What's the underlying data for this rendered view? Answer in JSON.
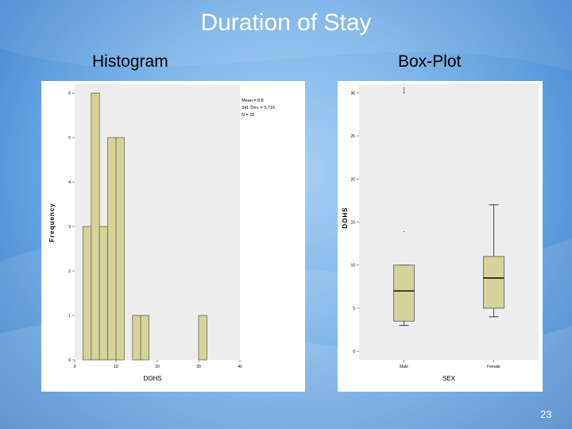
{
  "slide": {
    "title": "Duration of Stay",
    "left_heading": "Histogram",
    "right_heading": "Box-Plot",
    "page_number": "23"
  },
  "colors": {
    "bar_fill": "#d6d29b",
    "bar_stroke": "#6e6a3a",
    "plot_bg": "#ededed",
    "panel_bg": "#ffffff"
  },
  "chart_data": [
    {
      "type": "bar",
      "subtype": "histogram",
      "xlabel": "DOHS",
      "ylabel": "Frequency",
      "xlim": [
        0,
        40
      ],
      "ylim": [
        0,
        6.2
      ],
      "x_ticks": [
        "0",
        "10",
        "20",
        "30",
        "40"
      ],
      "y_ticks": [
        "0",
        "1",
        "2",
        "3",
        "4",
        "5",
        "6"
      ],
      "bin_width": 2,
      "bins": [
        {
          "start": 2,
          "end": 4,
          "count": 3
        },
        {
          "start": 4,
          "end": 6,
          "count": 6
        },
        {
          "start": 6,
          "end": 8,
          "count": 3
        },
        {
          "start": 8,
          "end": 10,
          "count": 5
        },
        {
          "start": 10,
          "end": 12,
          "count": 5
        },
        {
          "start": 14,
          "end": 16,
          "count": 1
        },
        {
          "start": 16,
          "end": 18,
          "count": 1
        },
        {
          "start": 30,
          "end": 32,
          "count": 1
        }
      ],
      "stats": [
        "Mean = 8.8",
        "Std. Dev. = 5.716",
        "N = 25"
      ]
    },
    {
      "type": "box",
      "xlabel": "SEX",
      "ylabel": "DOHS",
      "ylim": [
        -1,
        31
      ],
      "y_ticks": [
        "0",
        "5",
        "10",
        "15",
        "20",
        "25",
        "30"
      ],
      "categories": [
        "Male",
        "Female"
      ],
      "boxes": [
        {
          "name": "Male",
          "min": 3,
          "q1": 3.5,
          "median": 7,
          "q3": 10,
          "max": 10
        },
        {
          "name": "Female",
          "min": 4,
          "q1": 5,
          "median": 8.5,
          "q3": 11,
          "max": 17
        }
      ],
      "outliers": [
        {
          "category": "Male",
          "value": 14,
          "marker": "-"
        },
        {
          "category": "Male",
          "value": 30,
          "marker": "*",
          "label": "1"
        }
      ]
    }
  ]
}
